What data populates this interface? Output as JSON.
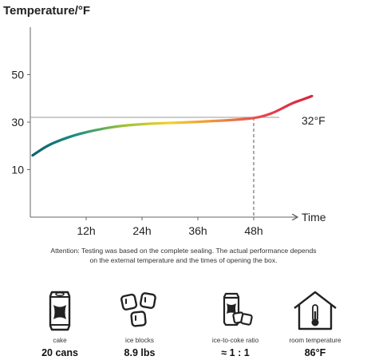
{
  "chart_data": {
    "type": "line",
    "ylabel": "Temperature/°F",
    "xlabel": "Time",
    "x_ticks": [
      12,
      24,
      36,
      48
    ],
    "x_tick_labels": [
      "12h",
      "24h",
      "36h",
      "48h"
    ],
    "y_ticks": [
      10,
      30,
      50
    ],
    "y_tick_labels": [
      "10",
      "30",
      "50"
    ],
    "xlim": [
      0,
      60
    ],
    "ylim": [
      -10,
      70
    ],
    "reference_line": {
      "y": 32,
      "label": "32°F"
    },
    "marker_x": 48,
    "series": [
      {
        "x": [
          0,
          3,
          6,
          9,
          12,
          15,
          18,
          21,
          24,
          27,
          30,
          33,
          36,
          39,
          42,
          45,
          48,
          50,
          52,
          54,
          56,
          58,
          60
        ],
        "values": [
          16,
          20,
          22.5,
          24.5,
          26,
          27.2,
          28.2,
          28.8,
          29.2,
          29.5,
          29.7,
          29.9,
          30.2,
          30.5,
          30.8,
          31.2,
          31.8,
          32.8,
          34.2,
          36.2,
          38.2,
          39.5,
          41
        ],
        "gradient_colors": [
          "#0f5c6b",
          "#1a8f84",
          "#9cc23a",
          "#f2d02c",
          "#ee8f3c",
          "#e64450",
          "#d9253e"
        ]
      }
    ]
  },
  "note": {
    "line1": "Attention: Testing was based on the complete sealing. The actual performance depends",
    "line2": "on the external temperature and the times of opening the box."
  },
  "stats": [
    {
      "icon": "soda-can-icon",
      "label": "cake",
      "value": "20 cans"
    },
    {
      "icon": "ice-cubes-icon",
      "label": "ice blocks",
      "value": "8.9 lbs"
    },
    {
      "icon": "ice-coke-icon",
      "label": "ice-to-coke ratio",
      "value": "≈ 1 : 1"
    },
    {
      "icon": "house-thermometer-icon",
      "label": "room temperature",
      "value": "86°F"
    }
  ]
}
